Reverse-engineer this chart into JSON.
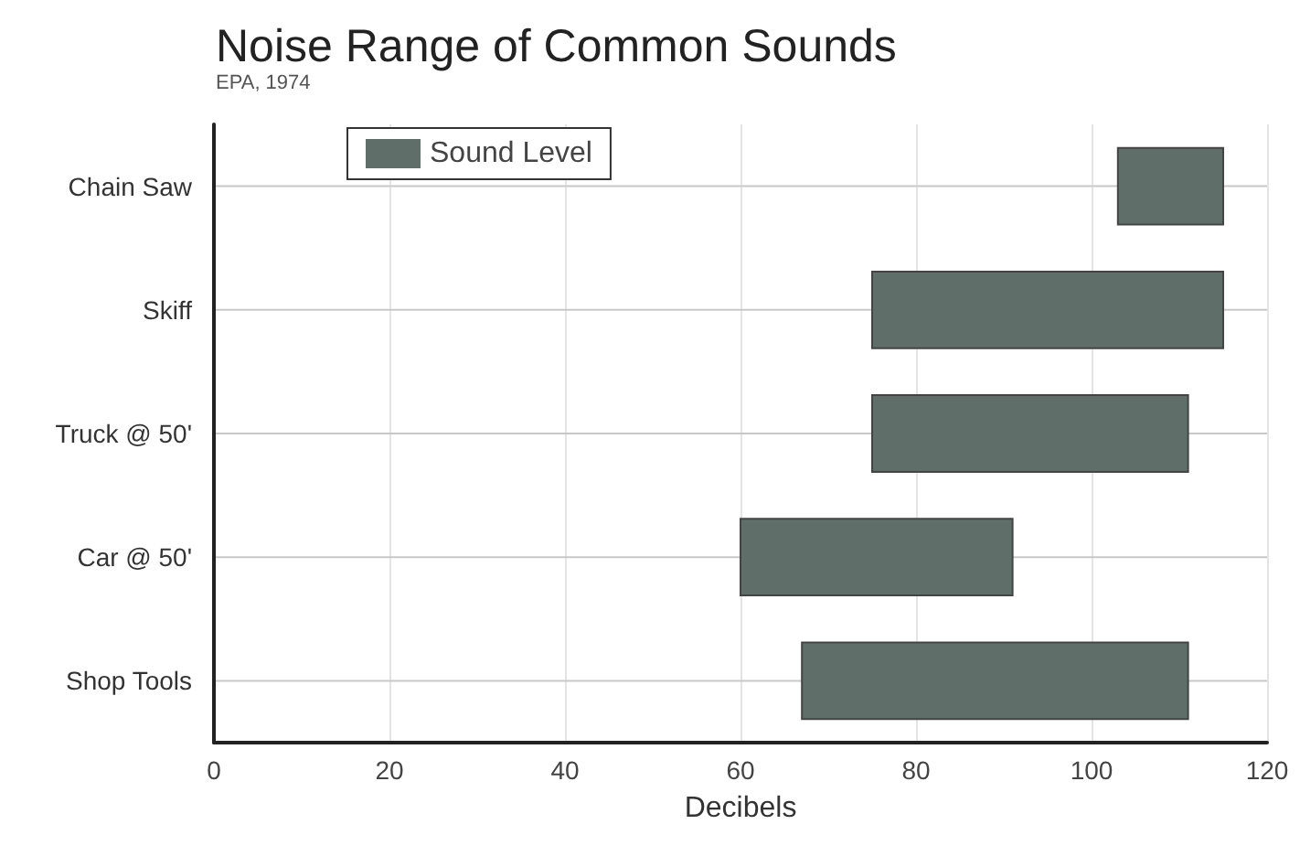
{
  "chart_data": {
    "type": "bar",
    "orientation": "horizontal",
    "title": "Noise Range of Common Sounds",
    "subtitle": "EPA, 1974",
    "xlabel": "Decibels",
    "categories": [
      "Chain Saw",
      "Skiff",
      "Truck @ 50'",
      "Car @ 50'",
      "Shop Tools"
    ],
    "series": [
      {
        "name": "Sound Level",
        "color": "#5f6e69",
        "values": [
          12,
          40,
          36,
          31,
          44
        ],
        "base": [
          103,
          75,
          75,
          60,
          67
        ]
      }
    ],
    "xlim": [
      0,
      120
    ],
    "xticks": [
      0,
      20,
      40,
      60,
      80,
      100,
      120
    ],
    "grid": true,
    "legend": "top left"
  }
}
